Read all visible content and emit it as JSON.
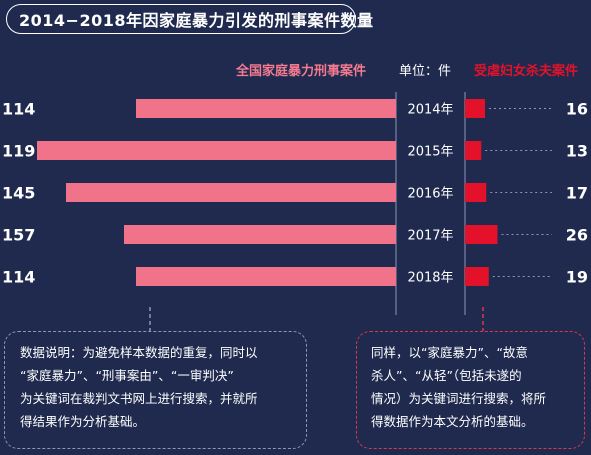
{
  "title": "2014−2018年因家庭暴力引发的刑事案件数量",
  "header": {
    "left_series_label": "全国家庭暴力刑事案件",
    "unit_label": "单位：件",
    "right_series_label": "受虐妇女杀夫案件"
  },
  "colors": {
    "background": "#1f2a4e",
    "left_bar": "#f0738a",
    "right_bar": "#e3122a",
    "left_series_text": "#f47b8f",
    "right_series_text": "#e3122a"
  },
  "chart_data": {
    "type": "bar",
    "layout": "butterfly",
    "categories": [
      "2014年",
      "2015年",
      "2016年",
      "2017年",
      "2018年"
    ],
    "series": [
      {
        "name": "全国家庭暴力刑事案件",
        "values": [
          114,
          119,
          145,
          157,
          114
        ]
      },
      {
        "name": "受虐妇女杀夫案件",
        "values": [
          16,
          13,
          17,
          26,
          19
        ]
      }
    ],
    "grid": false
  },
  "notes": {
    "left": [
      "数据说明：为避免样本数据的重复，同时以",
      "“家庭暴力”、“刑事案由”、“一审判决”",
      "为关键词在裁判文书网上进行搜索，并就所",
      "得结果作为分析基础。"
    ],
    "right": [
      "同样，以“家庭暴力”、“故意",
      "杀人”、“从轻”（包括未遂的",
      "情况）为关键词进行搜索，将所",
      "得数据作为本文分析的基础。"
    ]
  }
}
